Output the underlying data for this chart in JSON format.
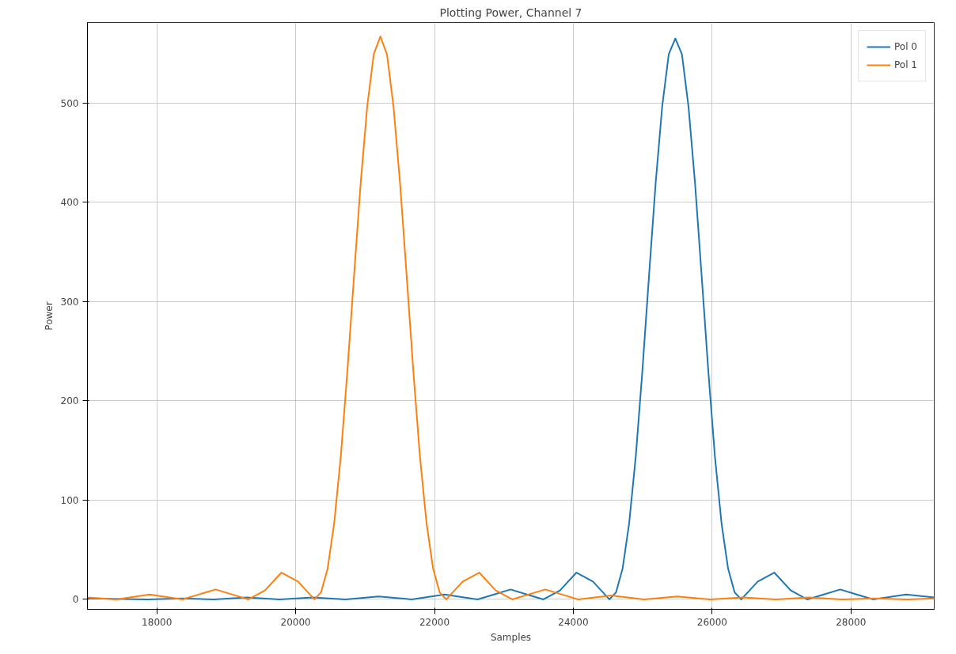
{
  "chart_data": {
    "type": "line",
    "title": "Plotting Power, Channel 7",
    "xlabel": "Samples",
    "ylabel": "Power",
    "xlim": [
      17000,
      29200
    ],
    "ylim": [
      -10,
      581
    ],
    "xticks": [
      18000,
      20000,
      22000,
      24000,
      26000,
      28000
    ],
    "yticks": [
      0,
      100,
      200,
      300,
      400,
      500
    ],
    "grid": true,
    "legend": "top right",
    "marker": "none",
    "line_style": "solid",
    "series": [
      {
        "name": "Pol 0",
        "color": "#1f77b4",
        "x": [
          17000,
          17870,
          18345,
          18820,
          19295,
          19770,
          20245,
          20720,
          21195,
          21670,
          22145,
          22620,
          22858,
          23095,
          23333,
          23570,
          23808,
          24045,
          24283,
          24520,
          24615,
          24710,
          24805,
          24900,
          24995,
          25090,
          25185,
          25280,
          25375,
          25470,
          25565,
          25660,
          25755,
          25850,
          25945,
          26040,
          26135,
          26230,
          26325,
          26420,
          26658,
          26895,
          27133,
          27370,
          27608,
          27845,
          28083,
          28320,
          28795,
          29200
        ],
        "values": [
          1,
          0,
          1,
          0,
          2,
          0,
          2,
          0,
          3,
          0,
          5,
          0,
          5,
          10,
          5,
          0,
          9,
          27,
          18,
          0,
          7,
          31,
          77,
          144,
          230,
          325,
          418,
          496,
          549,
          565,
          549,
          496,
          418,
          325,
          230,
          144,
          77,
          31,
          7,
          0,
          18,
          27,
          9,
          0,
          5,
          10,
          5,
          0,
          5,
          2
        ]
      },
      {
        "name": "Pol 1",
        "color": "#ff7f0e",
        "x": [
          17000,
          17420,
          17895,
          18370,
          18607,
          18845,
          19082,
          19320,
          19557,
          19795,
          20033,
          20270,
          20365,
          20460,
          20555,
          20650,
          20745,
          20840,
          20935,
          21030,
          21125,
          21220,
          21315,
          21410,
          21505,
          21600,
          21695,
          21790,
          21885,
          21980,
          22075,
          22170,
          22407,
          22645,
          22882,
          23120,
          23357,
          23595,
          23832,
          24070,
          24545,
          25020,
          25495,
          25970,
          26445,
          26920,
          27395,
          27870,
          28345,
          28820,
          29200
        ],
        "values": [
          2,
          0,
          5,
          0,
          5,
          10,
          5,
          0,
          9,
          27,
          18,
          0,
          7,
          31,
          77,
          144,
          230,
          325,
          418,
          496,
          549,
          567,
          549,
          496,
          418,
          325,
          230,
          144,
          77,
          31,
          7,
          0,
          18,
          27,
          9,
          0,
          5,
          10,
          5,
          0,
          4,
          0,
          3,
          0,
          2,
          0,
          2,
          0,
          1,
          0,
          1
        ]
      }
    ]
  }
}
